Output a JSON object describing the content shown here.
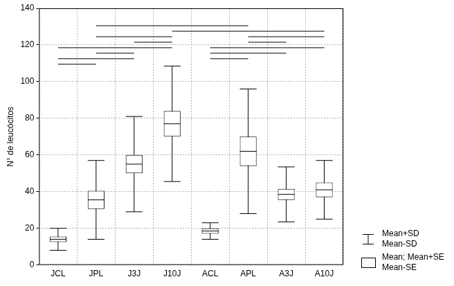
{
  "chart_data": {
    "type": "box",
    "y_label": "N° de leucócitos",
    "categories": [
      "JCL",
      "JPL",
      "J3J",
      "J10J",
      "ACL",
      "APL",
      "A3J",
      "A10J"
    ],
    "means": [
      14,
      35.5,
      55,
      77,
      18.5,
      62,
      38.5,
      41
    ],
    "se": [
      1.5,
      5,
      5,
      7,
      1.5,
      8,
      3,
      4
    ],
    "sd": [
      6,
      21.5,
      26,
      31.5,
      4.5,
      34,
      15,
      16
    ],
    "significance": [
      {
        "from": "JPL",
        "to": "APL",
        "y": 130.5
      },
      {
        "from": "J10J",
        "to": "A10J",
        "y": 127.5
      },
      {
        "from": "JPL",
        "to": "J10J",
        "y": 124.5
      },
      {
        "from": "APL",
        "to": "A10J",
        "y": 124.5
      },
      {
        "from": "J3J",
        "to": "J10J",
        "y": 121.5
      },
      {
        "from": "APL",
        "to": "A3J",
        "y": 121.5
      },
      {
        "from": "JCL",
        "to": "J10J",
        "y": 118.5
      },
      {
        "from": "ACL",
        "to": "A10J",
        "y": 118.5
      },
      {
        "from": "JPL",
        "to": "J3J",
        "y": 115.5
      },
      {
        "from": "ACL",
        "to": "A3J",
        "y": 115.5
      },
      {
        "from": "JCL",
        "to": "J3J",
        "y": 112.5
      },
      {
        "from": "ACL",
        "to": "APL",
        "y": 112.5
      },
      {
        "from": "JCL",
        "to": "JPL",
        "y": 109.5
      }
    ],
    "color": "#ffffff",
    "ylim": [
      0,
      140
    ],
    "yticks": [
      0,
      20,
      40,
      60,
      80,
      100,
      120,
      140
    ],
    "grid": true,
    "legend": "lower right",
    "legend_labels": [
      [
        "Mean+SD",
        "Mean-SD"
      ],
      [
        "Mean; Mean+SE",
        "Mean-SE"
      ]
    ]
  }
}
